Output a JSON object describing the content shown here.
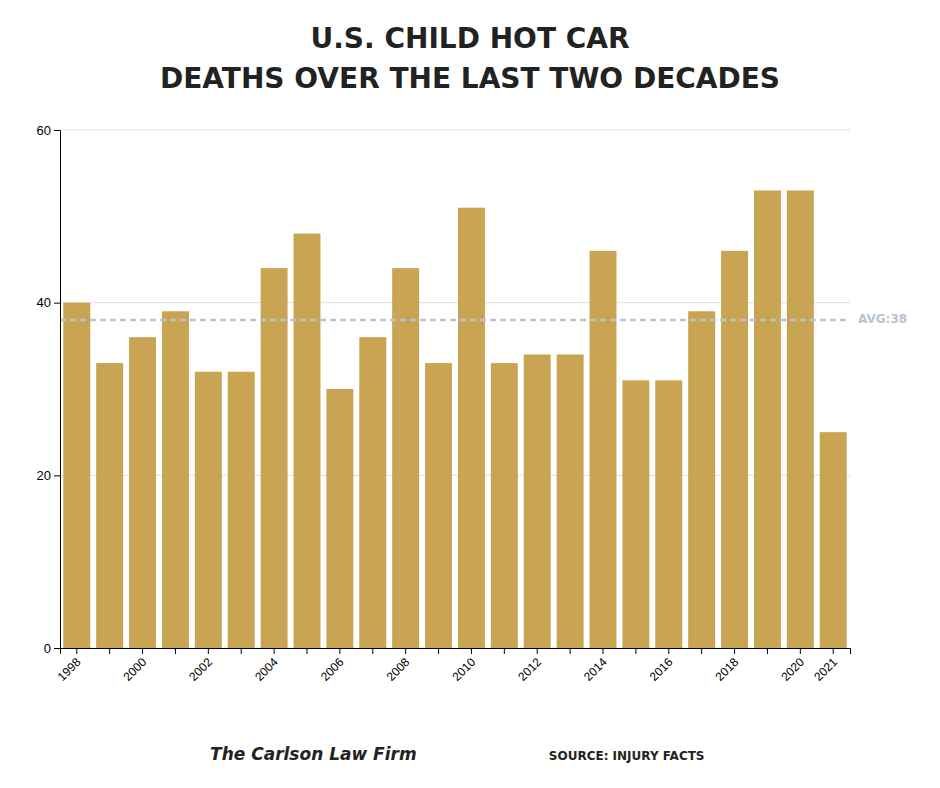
{
  "chart_data": {
    "type": "bar",
    "title": "U.S. CHILD HOT CAR",
    "subtitle": "DEATHS OVER THE LAST TWO DECADES",
    "categories": [
      "1998",
      null,
      "2000",
      null,
      "2002",
      null,
      "2004",
      null,
      "2006",
      null,
      "2008",
      null,
      "2010",
      null,
      "2012",
      null,
      "2014",
      null,
      "2016",
      null,
      "2018",
      null,
      "2020",
      "2021"
    ],
    "values": [
      40,
      33,
      36,
      39,
      32,
      32,
      44,
      48,
      30,
      36,
      44,
      33,
      51,
      33,
      34,
      34,
      46,
      31,
      31,
      39,
      46,
      53,
      53,
      25
    ],
    "color": "#C9A452",
    "ylim": [
      0,
      60
    ],
    "yticks": [
      0,
      20,
      40,
      60
    ],
    "grid": true,
    "annotations": [
      {
        "text": "AVG:38",
        "y": 38,
        "color": "#B8C4D0",
        "line_style": "dashed"
      },
      {
        "text": "The Carlson Law Firm"
      },
      {
        "text": "SOURCE: INJURY FACTS"
      }
    ]
  }
}
